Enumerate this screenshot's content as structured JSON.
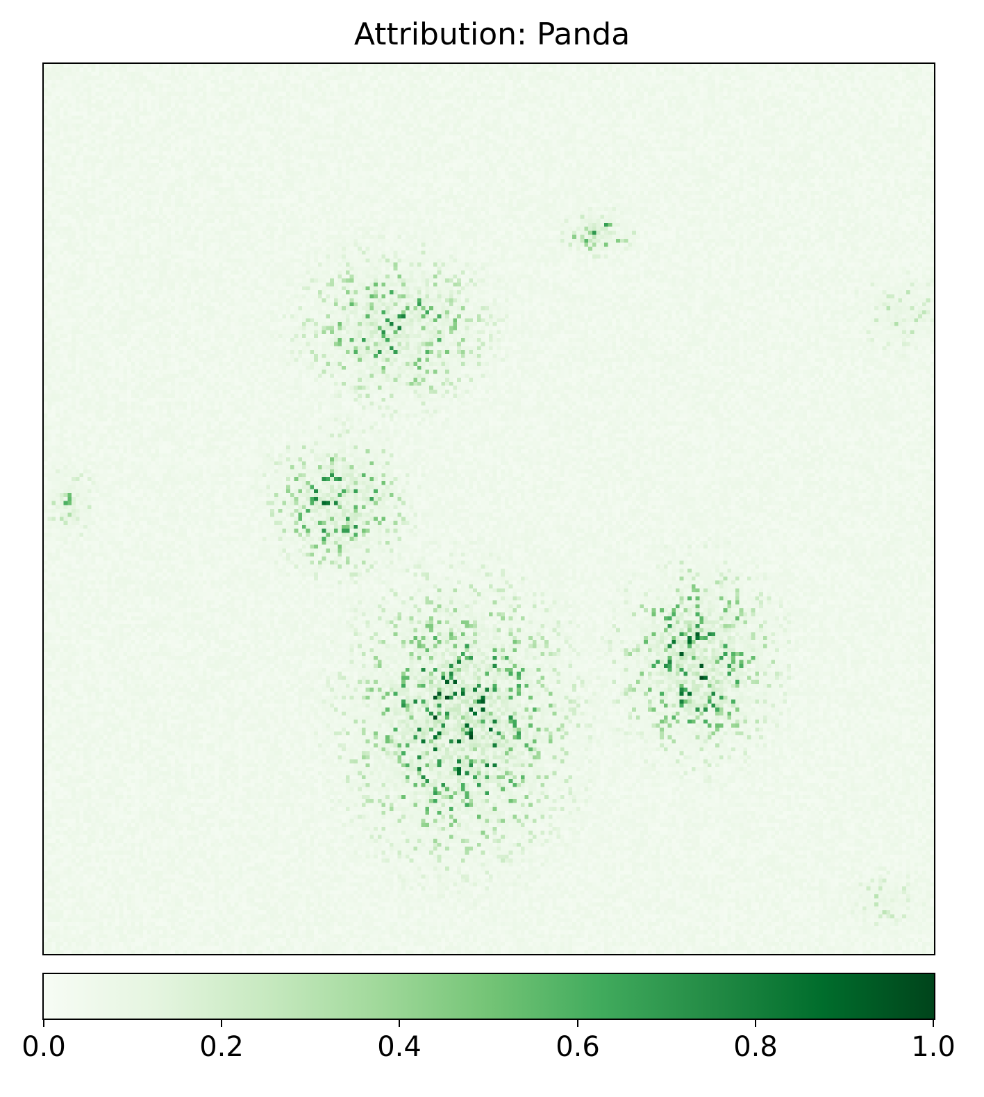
{
  "chart_data": {
    "type": "heatmap",
    "title": "Attribution: Panda",
    "xlabel": "",
    "ylabel": "",
    "grid": false,
    "colormap": "Greens",
    "colormap_stops": [
      "#f7fcf5",
      "#e5f5e0",
      "#c7e9c0",
      "#a1d99b",
      "#74c476",
      "#41ab5d",
      "#238b45",
      "#006d2c",
      "#00441b"
    ],
    "value_range": [
      0,
      1
    ],
    "grid_resolution": [
      224,
      224
    ],
    "colorbar": {
      "orientation": "horizontal",
      "placement": "bottom",
      "ticks": [
        0.0,
        0.2,
        0.4,
        0.6,
        0.8,
        1.0
      ],
      "tick_labels": [
        "0.0",
        "0.2",
        "0.4",
        "0.6",
        "0.8",
        "1.0"
      ]
    },
    "hotspots": [
      {
        "region": "upper-left blob",
        "center": [
          88,
          66
        ],
        "spread": [
          22,
          18
        ],
        "peak": 0.8
      },
      {
        "region": "middle-left blob",
        "center": [
          74,
          110
        ],
        "spread": [
          16,
          16
        ],
        "peak": 0.9
      },
      {
        "region": "central lower blob",
        "center": [
          104,
          165
        ],
        "spread": [
          26,
          32
        ],
        "peak": 1.0
      },
      {
        "region": "right blob",
        "center": [
          164,
          150
        ],
        "spread": [
          18,
          22
        ],
        "peak": 1.0
      },
      {
        "region": "top-middle streak",
        "center": [
          139,
          42
        ],
        "spread": [
          8,
          5
        ],
        "peak": 0.85
      },
      {
        "region": "far-left patch",
        "center": [
          6,
          110
        ],
        "spread": [
          6,
          8
        ],
        "peak": 0.6
      },
      {
        "region": "top-right patch",
        "center": [
          215,
          62
        ],
        "spread": [
          12,
          10
        ],
        "peak": 0.35
      },
      {
        "region": "bottom-right patch",
        "center": [
          212,
          210
        ],
        "spread": [
          10,
          8
        ],
        "peak": 0.3
      }
    ]
  }
}
